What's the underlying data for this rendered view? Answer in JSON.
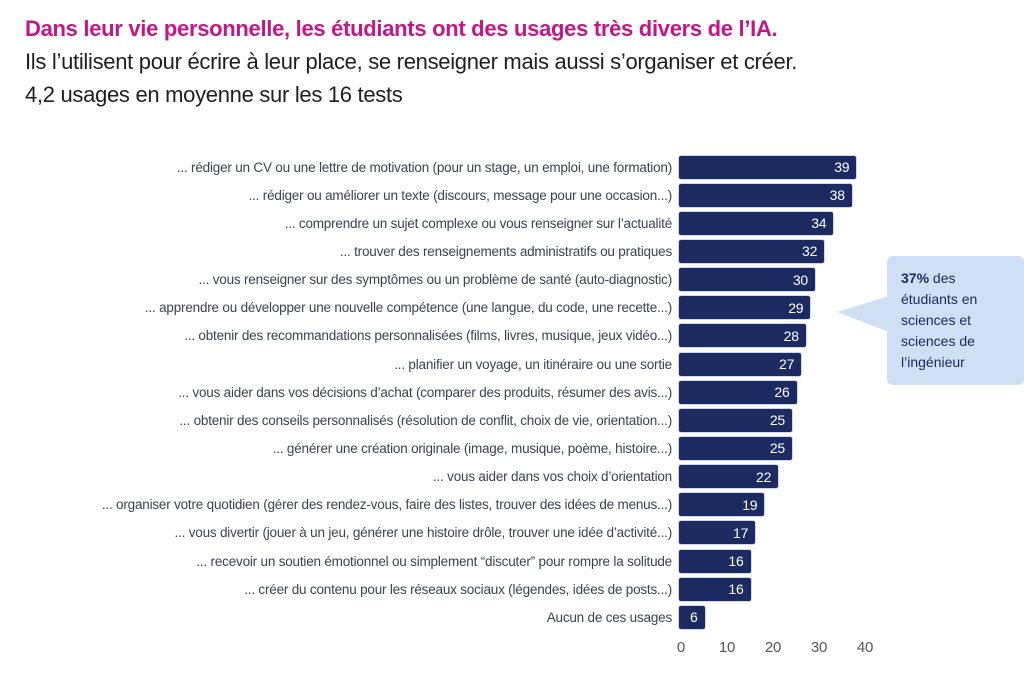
{
  "header": {
    "title": "Dans leur vie personnelle, les étudiants ont des usages très divers de l’IA.",
    "subtitle_line1": "Ils l’utilisent pour écrire à leur place, se renseigner mais aussi s’organiser et créer.",
    "subtitle_line2": "4,2 usages en moyenne sur les 16 tests"
  },
  "colors": {
    "title_magenta": "#c51689",
    "bar_navy": "#1b2a60",
    "bar_border": "#ccd8ec",
    "value_label_white": "#ffffff",
    "label_slate": "#3b4252",
    "axis_gray": "#565656",
    "callout_bg": "#cfe0f4",
    "callout_text": "#1b2a60"
  },
  "chart_data": {
    "type": "bar",
    "orientation": "horizontal",
    "title": "Dans leur vie personnelle, les étudiants ont des usages très divers de l’IA.",
    "categories": [
      "... rédiger un CV ou une lettre de motivation (pour un stage, un emploi, une formation)",
      "... rédiger ou améliorer un texte (discours, message pour une occasion...)",
      "... comprendre un sujet complexe ou vous renseigner sur l’actualité",
      "... trouver des renseignements administratifs ou pratiques",
      "... vous renseigner sur des symptômes ou un problème de santé (auto-diagnostic)",
      "... apprendre ou développer une nouvelle compétence (une langue, du code, une recette...)",
      "... obtenir des recommandations personnalisées (films, livres, musique, jeux vidéo...)",
      "... planifier un voyage, un itinéraire ou une sortie",
      "... vous aider dans vos décisions d’achat (comparer des produits, résumer des avis...)",
      "... obtenir des conseils personnalisés (résolution de conflit, choix de vie, orientation...)",
      "... générer une création originale (image, musique, poème, histoire...)",
      "... vous aider dans vos choix d’orientation",
      "... organiser votre quotidien (gérer des rendez-vous, faire des listes, trouver des idées de menus...)",
      "... vous divertir (jouer à un jeu, générer une histoire drôle, trouver une idée d’activité...)",
      "... recevoir un soutien émotionnel ou simplement “discuter” pour rompre la solitude",
      "... créer du contenu pour les réseaux sociaux (légendes, idées de posts...)",
      "Aucun de ces usages"
    ],
    "values": [
      39,
      38,
      34,
      32,
      30,
      29,
      28,
      27,
      26,
      25,
      25,
      22,
      19,
      17,
      16,
      16,
      6
    ],
    "xlabel": "",
    "ylabel": "",
    "xlim": [
      0,
      40
    ],
    "x_ticks": [
      0,
      10,
      20,
      30,
      40
    ],
    "grid": false,
    "bar_color": "#1b2a60",
    "value_label_color": "#ffffff",
    "legend": null
  },
  "callout": {
    "highlight": "37%",
    "text": " des étudiants en sciences et sciences de l’ingénieur",
    "target_category_index": 5,
    "target_value": 29
  }
}
